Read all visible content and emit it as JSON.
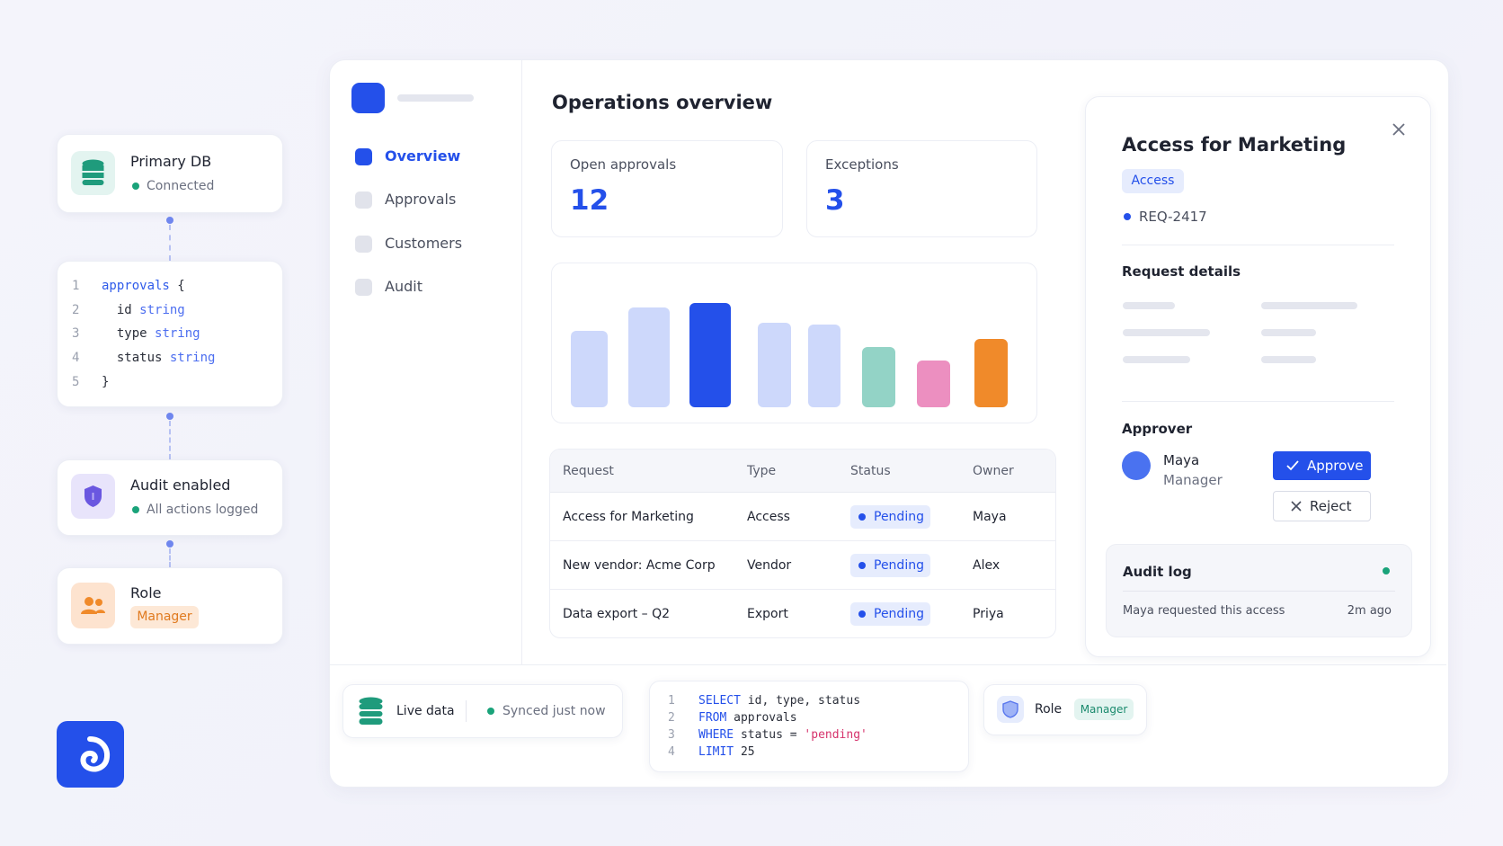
{
  "left_panel": {
    "database": {
      "title": "Primary DB",
      "status": "Connected"
    },
    "schema": {
      "line_numbers": [
        1,
        2,
        3,
        4,
        5
      ],
      "lines": [
        [
          {
            "text": "approvals",
            "color": "#2f5bea"
          },
          {
            "text": " {",
            "color": "#2b2f3a"
          }
        ],
        [
          {
            "text": "  id ",
            "color": "#2b2f3a"
          },
          {
            "text": "string",
            "color": "#4c6ef0"
          }
        ],
        [
          {
            "text": "  type ",
            "color": "#2b2f3a"
          },
          {
            "text": "string",
            "color": "#4c6ef0"
          }
        ],
        [
          {
            "text": "  status ",
            "color": "#2b2f3a"
          },
          {
            "text": "string",
            "color": "#4c6ef0"
          }
        ],
        [
          {
            "text": "}",
            "color": "#2b2f3a"
          }
        ]
      ]
    },
    "audit": {
      "title": "Audit enabled",
      "status": "All actions logged"
    },
    "role": {
      "title": "Role",
      "badge": "Manager"
    }
  },
  "nav": {
    "items": [
      "Overview",
      "Approvals",
      "Customers",
      "Audit"
    ],
    "active": 0
  },
  "main": {
    "title": "Operations overview",
    "stats": [
      {
        "label": "Open approvals",
        "value": 12
      },
      {
        "label": "Exceptions",
        "value": 3
      }
    ],
    "bars": {
      "values": [
        80,
        104,
        109,
        88,
        86,
        63,
        49,
        71
      ],
      "colors": [
        "#cdd8fb",
        "#cdd8fb",
        "#2450ea",
        "#cdd8fb",
        "#cdd8fb",
        "#93d3c6",
        "#ec8fc0",
        "#f08a2a"
      ]
    },
    "table": {
      "columns": [
        "Request",
        "Type",
        "Status",
        "Owner"
      ],
      "rows": [
        [
          "Access for Marketing",
          "Access",
          "Pending",
          "Maya"
        ],
        [
          "New vendor: Acme Corp",
          "Vendor",
          "Pending",
          "Alex"
        ],
        [
          "Data export – Q2",
          "Export",
          "Pending",
          "Priya"
        ]
      ]
    }
  },
  "detail": {
    "title": "Access for Marketing",
    "tag": "Access",
    "request_id": "REQ-2417",
    "section": "Request details",
    "approver_heading": "Approver",
    "approver_name": "Maya",
    "approver_role": "Manager",
    "approve": "Approve",
    "reject": "Reject",
    "audit_log": {
      "title": "Audit log",
      "entry": "Maya requested this access",
      "time": "2m ago"
    }
  },
  "footer": {
    "live": {
      "label": "Live data",
      "status": "Synced just now"
    },
    "sql": {
      "line_numbers": [
        1,
        2,
        3,
        4
      ],
      "lines": [
        [
          {
            "text": "SELECT",
            "color": "#2450ea"
          },
          {
            "text": " id, type, status",
            "color": "#2b2f3a"
          }
        ],
        [
          {
            "text": "FROM",
            "color": "#2450ea"
          },
          {
            "text": " approvals",
            "color": "#2b2f3a"
          }
        ],
        [
          {
            "text": "WHERE",
            "color": "#2450ea"
          },
          {
            "text": " status = ",
            "color": "#2b2f3a"
          },
          {
            "text": "'pending'",
            "color": "#d6336c"
          }
        ],
        [
          {
            "text": "LIMIT",
            "color": "#2450ea"
          },
          {
            "text": " 25",
            "color": "#2b2f3a"
          }
        ]
      ]
    },
    "role": {
      "label": "Role",
      "badge": "Manager"
    }
  }
}
